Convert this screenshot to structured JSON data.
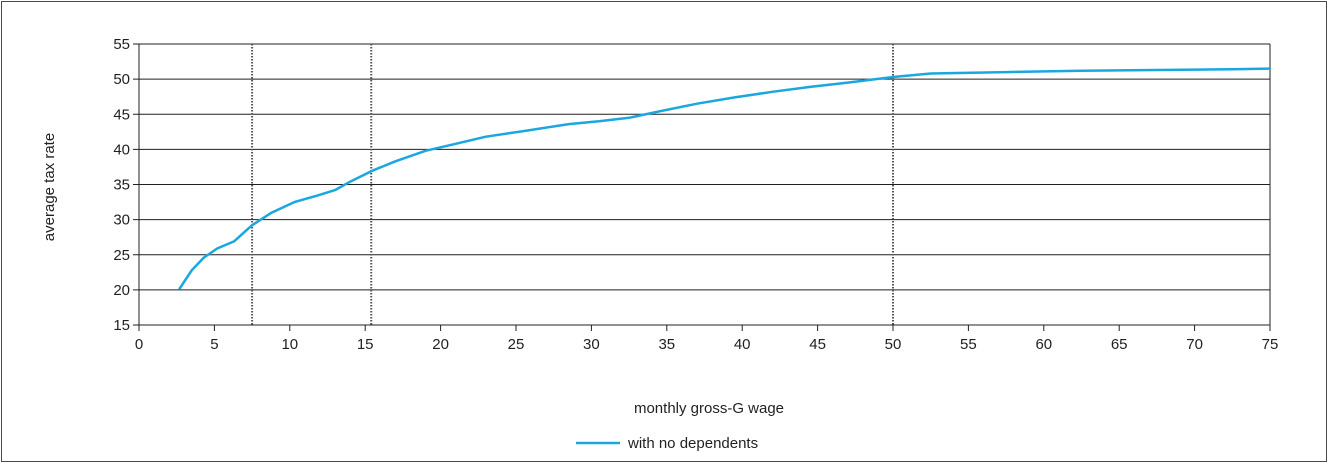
{
  "chart_data": {
    "type": "line",
    "title": "",
    "xlabel": "monthly gross-G wage",
    "ylabel": "average tax rate",
    "xlim": [
      0,
      75
    ],
    "ylim": [
      15,
      55
    ],
    "x_ticks": [
      0,
      5,
      10,
      15,
      20,
      25,
      30,
      35,
      40,
      45,
      50,
      55,
      60,
      65,
      70,
      75
    ],
    "y_ticks": [
      15,
      20,
      25,
      30,
      35,
      40,
      45,
      50,
      55
    ],
    "grid": "horizontal",
    "legend_position": "bottom",
    "vertical_markers": [
      7.5,
      15.4,
      50
    ],
    "colors": {
      "series": "#1aa7e0",
      "grid": "#231f20",
      "marker": "#555555"
    },
    "series": [
      {
        "name": "with no dependents",
        "x": [
          2.7,
          3.5,
          4.3,
          5.2,
          6.3,
          7.5,
          8.8,
          10.3,
          11.8,
          13.0,
          14.0,
          15.4,
          17.0,
          19.0,
          21.0,
          23.0,
          25.5,
          28.5,
          30.5,
          32.5,
          34.5,
          37.0,
          39.5,
          42.0,
          44.5,
          47.0,
          50.0,
          52.5,
          57.5,
          62.5,
          67.5,
          72.5,
          75.0
        ],
        "y": [
          20.2,
          22.8,
          24.6,
          25.9,
          26.9,
          29.2,
          31.0,
          32.5,
          33.4,
          34.2,
          35.4,
          36.9,
          38.3,
          39.8,
          40.8,
          41.8,
          42.6,
          43.6,
          44.0,
          44.5,
          45.4,
          46.5,
          47.4,
          48.2,
          48.9,
          49.5,
          50.3,
          50.8,
          51.0,
          51.2,
          51.3,
          51.4,
          51.5
        ]
      }
    ]
  }
}
